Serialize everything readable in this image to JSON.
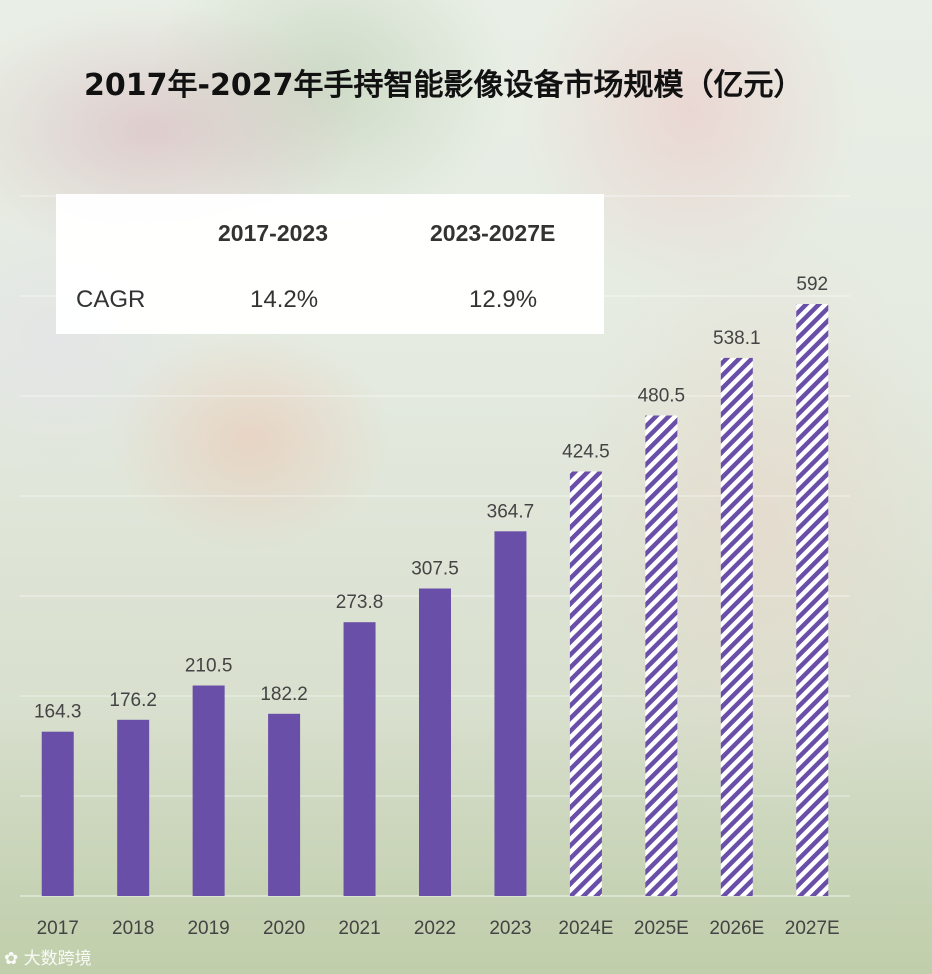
{
  "title": "2017年-2027年手持智能影像设备市场规模（亿元）",
  "cagr_table": {
    "header_col1": "2017-2023",
    "header_col2": "2023-2027E",
    "row_label": "CAGR",
    "value_col1": "14.2%",
    "value_col2": "12.9%"
  },
  "watermark": "大数跨境",
  "colors": {
    "bar": "#6a4fa8",
    "forecast_stripe": "#6a4fa8",
    "label": "#444444"
  },
  "chart_data": {
    "type": "bar",
    "categories": [
      "2017",
      "2018",
      "2019",
      "2020",
      "2021",
      "2022",
      "2023",
      "2024E",
      "2025E",
      "2026E",
      "2027E"
    ],
    "values": [
      164.3,
      176.2,
      210.5,
      182.2,
      273.8,
      307.5,
      364.7,
      424.5,
      480.5,
      538.1,
      592
    ],
    "value_labels": [
      "164.3",
      "176.2",
      "210.5",
      "182.2",
      "273.8",
      "307.5",
      "364.7",
      "424.5",
      "480.5",
      "538.1",
      "592"
    ],
    "forecast": [
      false,
      false,
      false,
      false,
      false,
      false,
      false,
      true,
      true,
      true,
      true
    ],
    "ylim": [
      0,
      700
    ],
    "grid": true,
    "xlabel": "",
    "ylabel": ""
  }
}
